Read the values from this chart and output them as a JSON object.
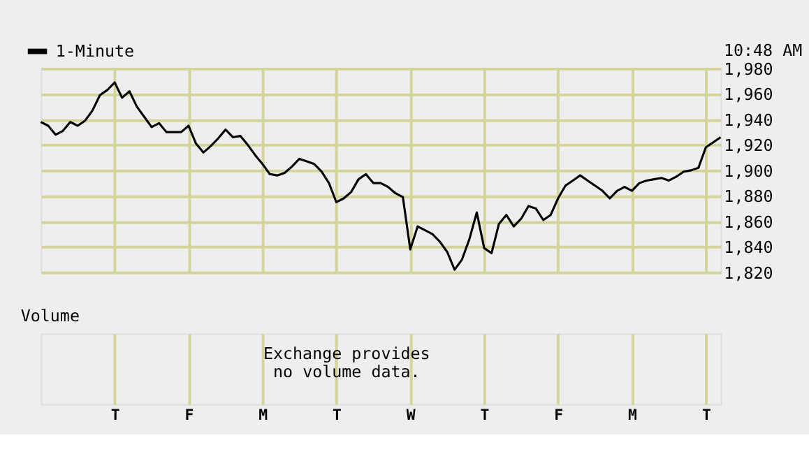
{
  "chart_data": [
    {
      "type": "line",
      "annotations": [
        "10:48 AM"
      ],
      "legend": "top left",
      "grid": true,
      "tick_labels": "y",
      "marker": "none",
      "line_style": "solid",
      "categories": [
        null,
        null,
        null,
        null,
        null,
        null,
        null,
        null,
        null,
        null,
        "T",
        null,
        null,
        null,
        null,
        null,
        null,
        null,
        null,
        null,
        "F",
        null,
        null,
        null,
        null,
        null,
        null,
        null,
        null,
        null,
        "M",
        null,
        null,
        null,
        null,
        null,
        null,
        null,
        null,
        null,
        "T",
        null,
        null,
        null,
        null,
        null,
        null,
        null,
        null,
        null,
        "W",
        null,
        null,
        null,
        null,
        null,
        null,
        null,
        null,
        null,
        "T",
        null,
        null,
        null,
        null,
        null,
        null,
        null,
        null,
        null,
        "F",
        null,
        null,
        null,
        null,
        null,
        null,
        null,
        null,
        null,
        "M",
        null,
        null,
        null,
        null,
        null,
        null,
        null,
        null,
        null,
        "T",
        null,
        null
      ],
      "ylim": [
        1820,
        1980
      ],
      "yticks": [
        {
          "value": 1820,
          "label": "1,820"
        },
        {
          "value": 1840,
          "label": "1,840"
        },
        {
          "value": 1860,
          "label": "1,860"
        },
        {
          "value": 1880,
          "label": "1,880"
        },
        {
          "value": 1900,
          "label": "1,900"
        },
        {
          "value": 1920,
          "label": "1,920"
        },
        {
          "value": 1940,
          "label": "1,940"
        },
        {
          "value": 1960,
          "label": "1,960"
        },
        {
          "value": 1980,
          "label": "1,980"
        }
      ],
      "series": [
        {
          "name": "1-Minute",
          "color": "#000000",
          "values": [
            1938,
            1935,
            1928,
            1931,
            1938,
            1935,
            1939,
            1947,
            1959,
            1963,
            1969,
            1957,
            1962,
            1950,
            1942,
            1934,
            1937,
            1930,
            1930,
            1930,
            1935,
            1921,
            1914,
            1919,
            1925,
            1932,
            1926,
            1927,
            1920,
            1912,
            1905,
            1897,
            1896,
            1898,
            1903,
            1909,
            1907,
            1905,
            1899,
            1890,
            1875,
            1878,
            1883,
            1893,
            1897,
            1890,
            1890,
            1887,
            1882,
            1879,
            1838,
            1856,
            1853,
            1850,
            1844,
            1836,
            1822,
            1830,
            1846,
            1867,
            1839,
            1835,
            1858,
            1865,
            1856,
            1862,
            1872,
            1870,
            1861,
            1865,
            1878,
            1888,
            1892,
            1896,
            1892,
            1888,
            1884,
            1878,
            1884,
            1887,
            1884,
            1890,
            1892,
            1893,
            1894,
            1892,
            1895,
            1899,
            1900,
            1902,
            1918,
            1922,
            1926
          ]
        }
      ]
    },
    {
      "type": "other",
      "title": "Volume",
      "annotations": [
        "Exchange provides no volume data."
      ]
    }
  ]
}
